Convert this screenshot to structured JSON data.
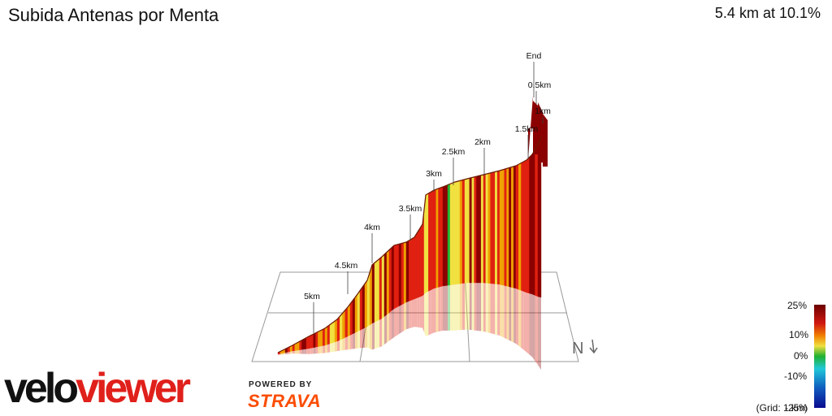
{
  "header": {
    "title": "Subida Antenas por Menta",
    "summary": "5.4 km at 10.1%"
  },
  "profile": {
    "markers": [
      {
        "label": "End"
      },
      {
        "label": "0.5km"
      },
      {
        "label": "1km"
      },
      {
        "label": "1.5km"
      },
      {
        "label": "2km"
      },
      {
        "label": "2.5km"
      },
      {
        "label": "3km"
      },
      {
        "label": "3.5km"
      },
      {
        "label": "4km"
      },
      {
        "label": "4.5km"
      },
      {
        "label": "5km"
      }
    ],
    "compass": "N"
  },
  "legend": {
    "ticks": [
      "25%",
      "10%",
      "0%",
      "-10%",
      "-25%"
    ],
    "grid_note": "(Grid: 1 km)",
    "colors": {
      "steep": "#8b0000",
      "hard": "#e02010",
      "moderate": "#f0a000",
      "easy": "#f0e040",
      "flat": "#20b030",
      "down": "#20c0d0",
      "steep_down": "#1010a0"
    }
  },
  "branding": {
    "logo_part1": "velo",
    "logo_part2": "viewer",
    "powered_by": "POWERED BY",
    "strava": "STRAVA"
  }
}
